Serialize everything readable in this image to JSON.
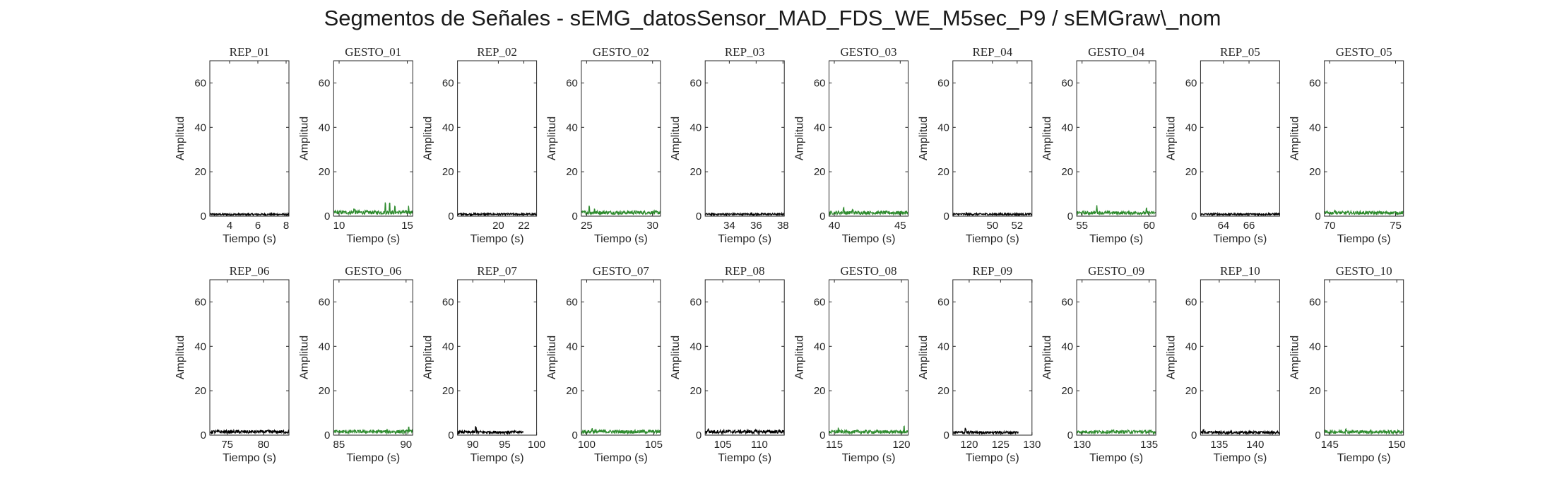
{
  "figure_title": "Segmentos de Señales - sEMG_datosSensor_MAD_FDS_WE_M5sec_P9 / sEMGraw\\_nom",
  "colors": {
    "rep": "#000000",
    "gesto": "#2e8b2e",
    "axis": "#262626"
  },
  "chart_data": [
    {
      "type": "area",
      "title": "REP_01",
      "xlabel": "Tiempo (s)",
      "ylabel": "Amplitud",
      "xlim": [
        2.6,
        8.2
      ],
      "ylim": [
        0,
        70
      ],
      "xticks": [
        4,
        6,
        8
      ],
      "yticks": [
        0,
        20,
        40,
        60
      ],
      "color": "#000000",
      "noise": 1.2,
      "spikes": []
    },
    {
      "type": "area",
      "title": "GESTO_01",
      "xlabel": "Tiempo (s)",
      "ylabel": "Amplitud",
      "xlim": [
        9.6,
        15.4
      ],
      "ylim": [
        0,
        70
      ],
      "xticks": [
        10,
        15
      ],
      "yticks": [
        0,
        20,
        40,
        60
      ],
      "color": "#2e8b2e",
      "noise": 2.5,
      "spikes": [
        [
          11.1,
          4
        ],
        [
          13.4,
          7
        ],
        [
          13.7,
          8
        ],
        [
          14.1,
          6
        ],
        [
          15.1,
          5
        ]
      ]
    },
    {
      "type": "area",
      "title": "REP_02",
      "xlabel": "Tiempo (s)",
      "ylabel": "Amplitud",
      "xlim": [
        16.8,
        23
      ],
      "ylim": [
        0,
        70
      ],
      "xticks": [
        20,
        22
      ],
      "yticks": [
        0,
        20,
        40,
        60
      ],
      "color": "#000000",
      "noise": 1.3,
      "spikes": []
    },
    {
      "type": "area",
      "title": "GESTO_02",
      "xlabel": "Tiempo (s)",
      "ylabel": "Amplitud",
      "xlim": [
        24.6,
        30.6
      ],
      "ylim": [
        0,
        70
      ],
      "xticks": [
        25,
        30
      ],
      "yticks": [
        0,
        20,
        40,
        60
      ],
      "color": "#2e8b2e",
      "noise": 2.4,
      "spikes": [
        [
          25.2,
          5
        ],
        [
          25.6,
          4
        ]
      ]
    },
    {
      "type": "area",
      "title": "REP_03",
      "xlabel": "Tiempo (s)",
      "ylabel": "Amplitud",
      "xlim": [
        32.2,
        38.1
      ],
      "ylim": [
        0,
        70
      ],
      "xticks": [
        34,
        36,
        38
      ],
      "yticks": [
        0,
        20,
        40,
        60
      ],
      "color": "#000000",
      "noise": 1.3,
      "spikes": []
    },
    {
      "type": "area",
      "title": "GESTO_03",
      "xlabel": "Tiempo (s)",
      "ylabel": "Amplitud",
      "xlim": [
        39.6,
        45.6
      ],
      "ylim": [
        0,
        70
      ],
      "xticks": [
        40,
        45
      ],
      "yticks": [
        0,
        20,
        40,
        60
      ],
      "color": "#2e8b2e",
      "noise": 2.3,
      "spikes": [
        [
          40.7,
          4.5
        ],
        [
          41.4,
          3.5
        ]
      ]
    },
    {
      "type": "area",
      "title": "REP_04",
      "xlabel": "Tiempo (s)",
      "ylabel": "Amplitud",
      "xlim": [
        46.8,
        53.2
      ],
      "ylim": [
        0,
        70
      ],
      "xticks": [
        50,
        52
      ],
      "yticks": [
        0,
        20,
        40,
        60
      ],
      "color": "#000000",
      "noise": 1.3,
      "spikes": []
    },
    {
      "type": "area",
      "title": "GESTO_04",
      "xlabel": "Tiempo (s)",
      "ylabel": "Amplitud",
      "xlim": [
        54.6,
        60.5
      ],
      "ylim": [
        0,
        70
      ],
      "xticks": [
        55,
        60
      ],
      "yticks": [
        0,
        20,
        40,
        60
      ],
      "color": "#2e8b2e",
      "noise": 2.2,
      "spikes": [
        [
          56.1,
          5
        ],
        [
          59.8,
          4
        ]
      ]
    },
    {
      "type": "area",
      "title": "REP_05",
      "xlabel": "Tiempo (s)",
      "ylabel": "Amplitud",
      "xlim": [
        62.2,
        68.4
      ],
      "ylim": [
        0,
        70
      ],
      "xticks": [
        64,
        66
      ],
      "yticks": [
        0,
        20,
        40,
        60
      ],
      "color": "#000000",
      "noise": 1.3,
      "spikes": []
    },
    {
      "type": "area",
      "title": "GESTO_05",
      "xlabel": "Tiempo (s)",
      "ylabel": "Amplitud",
      "xlim": [
        69.6,
        75.6
      ],
      "ylim": [
        0,
        70
      ],
      "xticks": [
        70,
        75
      ],
      "yticks": [
        0,
        20,
        40,
        60
      ],
      "color": "#2e8b2e",
      "noise": 2.2,
      "spikes": [
        [
          70.4,
          3.5
        ]
      ]
    },
    {
      "type": "area",
      "title": "REP_06",
      "xlabel": "Tiempo (s)",
      "ylabel": "Amplitud",
      "xlim": [
        72.6,
        83.5
      ],
      "ylim": [
        0,
        70
      ],
      "xticks": [
        75,
        80
      ],
      "yticks": [
        0,
        20,
        40,
        60
      ],
      "color": "#000000",
      "noise": 2.2,
      "spikes": []
    },
    {
      "type": "area",
      "title": "GESTO_06",
      "xlabel": "Tiempo (s)",
      "ylabel": "Amplitud",
      "xlim": [
        84.6,
        90.5
      ],
      "ylim": [
        0,
        70
      ],
      "xticks": [
        85,
        90
      ],
      "yticks": [
        0,
        20,
        40,
        60
      ],
      "color": "#2e8b2e",
      "noise": 2.3,
      "spikes": [
        [
          90.2,
          5.5
        ]
      ]
    },
    {
      "type": "area",
      "title": "REP_07",
      "xlabel": "Tiempo (s)",
      "ylabel": "Amplitud",
      "xlim": [
        87.6,
        100
      ],
      "ylim": [
        0,
        70
      ],
      "xticks": [
        90,
        95,
        100
      ],
      "yticks": [
        0,
        20,
        40,
        60
      ],
      "color": "#000000",
      "noise": 2.0,
      "spikes": [
        [
          90.5,
          5
        ]
      ],
      "x_end": 97.9
    },
    {
      "type": "area",
      "title": "GESTO_07",
      "xlabel": "Tiempo (s)",
      "ylabel": "Amplitud",
      "xlim": [
        99.6,
        105.5
      ],
      "ylim": [
        0,
        70
      ],
      "xticks": [
        100,
        105
      ],
      "yticks": [
        0,
        20,
        40,
        60
      ],
      "color": "#2e8b2e",
      "noise": 2.3,
      "spikes": [
        [
          100.4,
          4
        ]
      ]
    },
    {
      "type": "area",
      "title": "REP_08",
      "xlabel": "Tiempo (s)",
      "ylabel": "Amplitud",
      "xlim": [
        102.6,
        113.4
      ],
      "ylim": [
        0,
        70
      ],
      "xticks": [
        105,
        110
      ],
      "yticks": [
        0,
        20,
        40,
        60
      ],
      "color": "#000000",
      "noise": 2.3,
      "spikes": [
        [
          103,
          3.5
        ]
      ]
    },
    {
      "type": "area",
      "title": "GESTO_08",
      "xlabel": "Tiempo (s)",
      "ylabel": "Amplitud",
      "xlim": [
        114.6,
        120.5
      ],
      "ylim": [
        0,
        70
      ],
      "xticks": [
        115,
        120
      ],
      "yticks": [
        0,
        20,
        40,
        60
      ],
      "color": "#2e8b2e",
      "noise": 2.2,
      "spikes": [
        [
          115.3,
          3.5
        ],
        [
          120.2,
          4
        ]
      ]
    },
    {
      "type": "area",
      "title": "REP_09",
      "xlabel": "Tiempo (s)",
      "ylabel": "Amplitud",
      "xlim": [
        117.4,
        130
      ],
      "ylim": [
        0,
        70
      ],
      "xticks": [
        120,
        125,
        130
      ],
      "yticks": [
        0,
        20,
        40,
        60
      ],
      "color": "#000000",
      "noise": 1.8,
      "spikes": [
        [
          119.4,
          4
        ]
      ],
      "x_end": 127.8
    },
    {
      "type": "area",
      "title": "GESTO_09",
      "xlabel": "Tiempo (s)",
      "ylabel": "Amplitud",
      "xlim": [
        129.6,
        135.5
      ],
      "ylim": [
        0,
        70
      ],
      "xticks": [
        130,
        135
      ],
      "yticks": [
        0,
        20,
        40,
        60
      ],
      "color": "#2e8b2e",
      "noise": 2.2,
      "spikes": []
    },
    {
      "type": "area",
      "title": "REP_10",
      "xlabel": "Tiempo (s)",
      "ylabel": "Amplitud",
      "xlim": [
        132.4,
        143.4
      ],
      "ylim": [
        0,
        70
      ],
      "xticks": [
        135,
        140
      ],
      "yticks": [
        0,
        20,
        40,
        60
      ],
      "color": "#000000",
      "noise": 1.8,
      "spikes": [
        [
          132.8,
          3.5
        ]
      ]
    },
    {
      "type": "area",
      "title": "GESTO_10",
      "xlabel": "Tiempo (s)",
      "ylabel": "Amplitud",
      "xlim": [
        144.6,
        150.5
      ],
      "ylim": [
        0,
        70
      ],
      "xticks": [
        145,
        150
      ],
      "yticks": [
        0,
        20,
        40,
        60
      ],
      "color": "#2e8b2e",
      "noise": 2.2,
      "spikes": [
        [
          146.2,
          3.5
        ]
      ]
    }
  ]
}
